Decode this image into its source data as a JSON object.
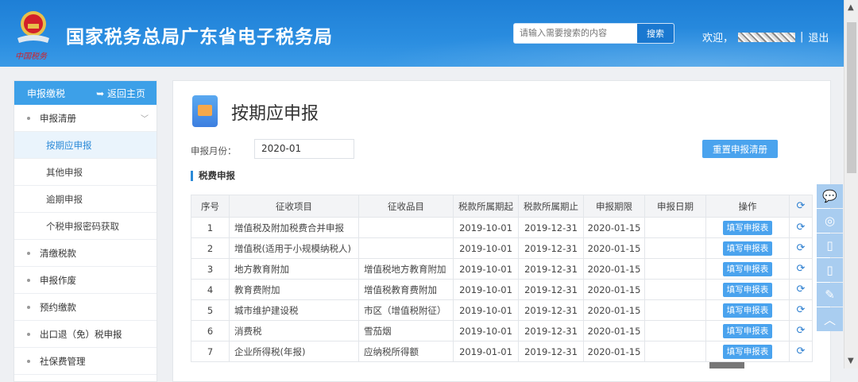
{
  "header": {
    "title": "国家税务总局广东省电子税务局",
    "emblem_text": "中国税务",
    "search_placeholder": "请输入需要搜索的内容",
    "search_button": "搜索",
    "welcome": "欢迎，",
    "separator": "|",
    "logout": "退出"
  },
  "sidebar": {
    "title": "申报缴税",
    "back": "返回主页",
    "items": [
      {
        "label": "申报清册",
        "type": "group"
      },
      {
        "label": "按期应申报",
        "type": "sub",
        "active": true
      },
      {
        "label": "其他申报",
        "type": "sub"
      },
      {
        "label": "逾期申报",
        "type": "sub"
      },
      {
        "label": "个税申报密码获取",
        "type": "sub"
      },
      {
        "label": "清缴税款",
        "type": "group"
      },
      {
        "label": "申报作废",
        "type": "group"
      },
      {
        "label": "预约缴款",
        "type": "group"
      },
      {
        "label": "出口退（免）税申报",
        "type": "group"
      },
      {
        "label": "社保费管理",
        "type": "group"
      }
    ]
  },
  "main": {
    "title": "按期应申报",
    "month_label": "申报月份：",
    "month_value": "2020-01",
    "reset_button": "重置申报清册",
    "section": "税费申报",
    "columns": [
      "序号",
      "征收项目",
      "征收品目",
      "税款所属期起",
      "税款所属期止",
      "申报期限",
      "申报日期",
      "操作"
    ],
    "action_label": "填写申报表",
    "rows": [
      [
        "1",
        "增值税及附加税费合并申报",
        "",
        "2019-10-01",
        "2019-12-31",
        "2020-01-15",
        ""
      ],
      [
        "2",
        "增值税(适用于小规模纳税人)",
        "",
        "2019-10-01",
        "2019-12-31",
        "2020-01-15",
        ""
      ],
      [
        "3",
        "地方教育附加",
        "增值税地方教育附加",
        "2019-10-01",
        "2019-12-31",
        "2020-01-15",
        ""
      ],
      [
        "4",
        "教育费附加",
        "增值税教育费附加",
        "2019-10-01",
        "2019-12-31",
        "2020-01-15",
        ""
      ],
      [
        "5",
        "城市维护建设税",
        "市区（增值税附征）",
        "2019-10-01",
        "2019-12-31",
        "2020-01-15",
        ""
      ],
      [
        "6",
        "消费税",
        "雪茄烟",
        "2019-10-01",
        "2019-12-31",
        "2020-01-15",
        ""
      ],
      [
        "7",
        "企业所得税(年报)",
        "应纳税所得额",
        "2019-01-01",
        "2019-12-31",
        "2020-01-15",
        ""
      ]
    ]
  },
  "float_bar": [
    "wechat-icon",
    "weibo-icon",
    "mobile-icon",
    "tablet-icon",
    "feedback-icon",
    "back-to-top-icon"
  ],
  "colors": {
    "header": "#2a8de0",
    "accent": "#3da0e8",
    "button": "#4aa3ee"
  }
}
